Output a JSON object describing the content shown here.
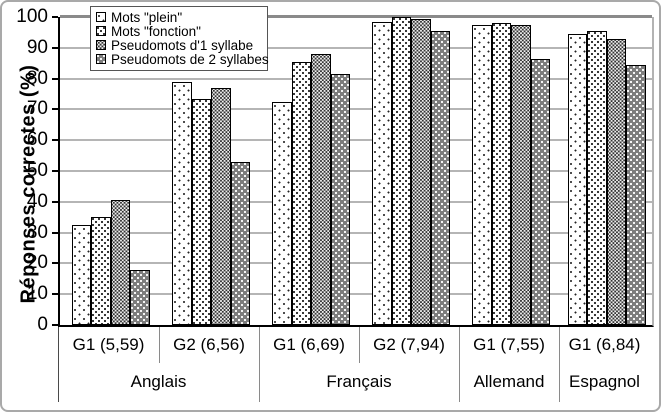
{
  "chart_data": {
    "type": "bar",
    "ylabel": "Réponses correctes (%)",
    "ylim": [
      0,
      100
    ],
    "yticks": [
      0,
      10,
      20,
      30,
      40,
      50,
      60,
      70,
      80,
      90,
      100
    ],
    "grid": "horizontal",
    "legend_position": "top-left-inside",
    "groups": [
      {
        "label": "G1 (5,59)",
        "language": "Anglais"
      },
      {
        "label": "G2 (6,56)",
        "language": "Anglais"
      },
      {
        "label": "G1 (6,69)",
        "language": "Français"
      },
      {
        "label": "G2 (7,94)",
        "language": "Français"
      },
      {
        "label": "G1 (7,55)",
        "language": "Allemand"
      },
      {
        "label": "G1 (6,84)",
        "language": "Espagnol"
      }
    ],
    "languages": [
      {
        "label": "Anglais",
        "span": 2
      },
      {
        "label": "Français",
        "span": 2
      },
      {
        "label": "Allemand",
        "span": 1
      },
      {
        "label": "Espagnol",
        "span": 1
      }
    ],
    "series": [
      {
        "name": "Mots \"plein\"",
        "pattern": "sparse-dots",
        "values": [
          32.5,
          79,
          72.5,
          98.5,
          97.5,
          94.5
        ]
      },
      {
        "name": "Mots \"fonction\"",
        "pattern": "medium-dots",
        "values": [
          35,
          73.5,
          85.5,
          100,
          98,
          95.5
        ]
      },
      {
        "name": "Pseudomots d'1 syllabe",
        "pattern": "dense-dots",
        "values": [
          40.5,
          77,
          88,
          99.5,
          97.5,
          93
        ]
      },
      {
        "name": "Pseudomots de 2 syllabes",
        "pattern": "dark-white-dots",
        "values": [
          18,
          53,
          81.5,
          95.5,
          86.5,
          84.5
        ]
      }
    ]
  }
}
